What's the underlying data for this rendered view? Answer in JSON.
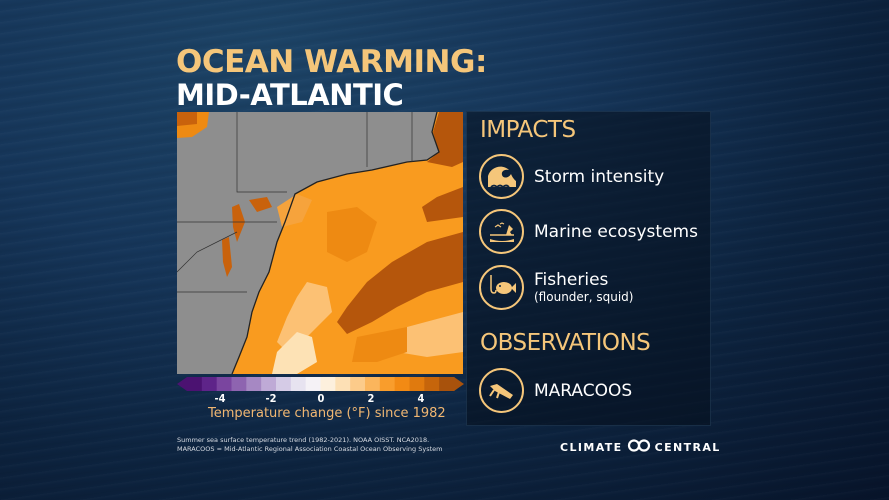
{
  "title": {
    "line1": "OCEAN WARMING:",
    "line2": "MID-ATLANTIC"
  },
  "map": {
    "description": "Map of Mid-Atlantic US coast showing summer sea surface temperature change",
    "land_color": "#8e8e8e",
    "warm_colors": [
      "#fde2b5",
      "#fbbf66",
      "#f99b1f",
      "#ee8a12",
      "#c9620c",
      "#a24c0c"
    ]
  },
  "colorbar": {
    "ticks": [
      "-4",
      "-2",
      "0",
      "2",
      "4"
    ],
    "label": "Temperature change (°F) since 1982",
    "colors": [
      "#4b1271",
      "#5e2489",
      "#7a459f",
      "#8e64b0",
      "#a688c3",
      "#bfaad6",
      "#d5cbe6",
      "#e7e3f0",
      "#f5f2f6",
      "#fdf0dd",
      "#fde0b5",
      "#fccb8a",
      "#fbb55c",
      "#f99d2c",
      "#f28a14",
      "#e07a0e",
      "#c6650b",
      "#a8520c"
    ]
  },
  "source": {
    "line1": "Summer sea surface temperature trend (1982-2021). NOAA OISST. NCA2018.",
    "line2": "MARACOOS = Mid-Atlantic Regional Association Coastal Ocean Observing System"
  },
  "panel": {
    "impacts_heading": "IMPACTS",
    "impacts": [
      {
        "icon": "storm-wave-icon",
        "label": "Storm intensity",
        "sub": ""
      },
      {
        "icon": "marine-ecosystem-icon",
        "label": "Marine ecosystems",
        "sub": ""
      },
      {
        "icon": "fish-hook-icon",
        "label": "Fisheries",
        "sub": "(flounder, squid)"
      }
    ],
    "observations_heading": "OBSERVATIONS",
    "observations": [
      {
        "icon": "ocean-glider-icon",
        "label": "MARACOOS"
      }
    ]
  },
  "branding": {
    "left": "CLIMATE",
    "right": "CENTRAL"
  },
  "colors": {
    "accent": "#f5c67a",
    "text": "#ffffff",
    "background": "#0d2440"
  }
}
